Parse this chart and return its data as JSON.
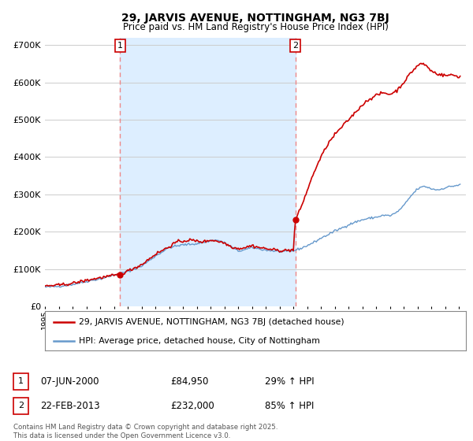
{
  "title_line1": "29, JARVIS AVENUE, NOTTINGHAM, NG3 7BJ",
  "title_line2": "Price paid vs. HM Land Registry's House Price Index (HPI)",
  "ytick_values": [
    0,
    100000,
    200000,
    300000,
    400000,
    500000,
    600000,
    700000
  ],
  "ylim": [
    0,
    720000
  ],
  "xlim_start": 1995.0,
  "xlim_end": 2025.5,
  "purchase1_date": 2000.44,
  "purchase1_price": 84950,
  "purchase2_date": 2013.14,
  "purchase2_price": 232000,
  "vline1_x": 2000.44,
  "vline2_x": 2013.14,
  "legend_line1": "29, JARVIS AVENUE, NOTTINGHAM, NG3 7BJ (detached house)",
  "legend_line2": "HPI: Average price, detached house, City of Nottingham",
  "annotation1_label": "1",
  "annotation2_label": "2",
  "table_row1": [
    "1",
    "07-JUN-2000",
    "£84,950",
    "29% ↑ HPI"
  ],
  "table_row2": [
    "2",
    "22-FEB-2013",
    "£232,000",
    "85% ↑ HPI"
  ],
  "footnote": "Contains HM Land Registry data © Crown copyright and database right 2025.\nThis data is licensed under the Open Government Licence v3.0.",
  "property_color": "#cc0000",
  "hpi_color": "#6699cc",
  "vline_color": "#ee8888",
  "shade_color": "#ddeeff",
  "background_color": "#ffffff",
  "plot_bg_color": "#ffffff",
  "grid_color": "#cccccc"
}
